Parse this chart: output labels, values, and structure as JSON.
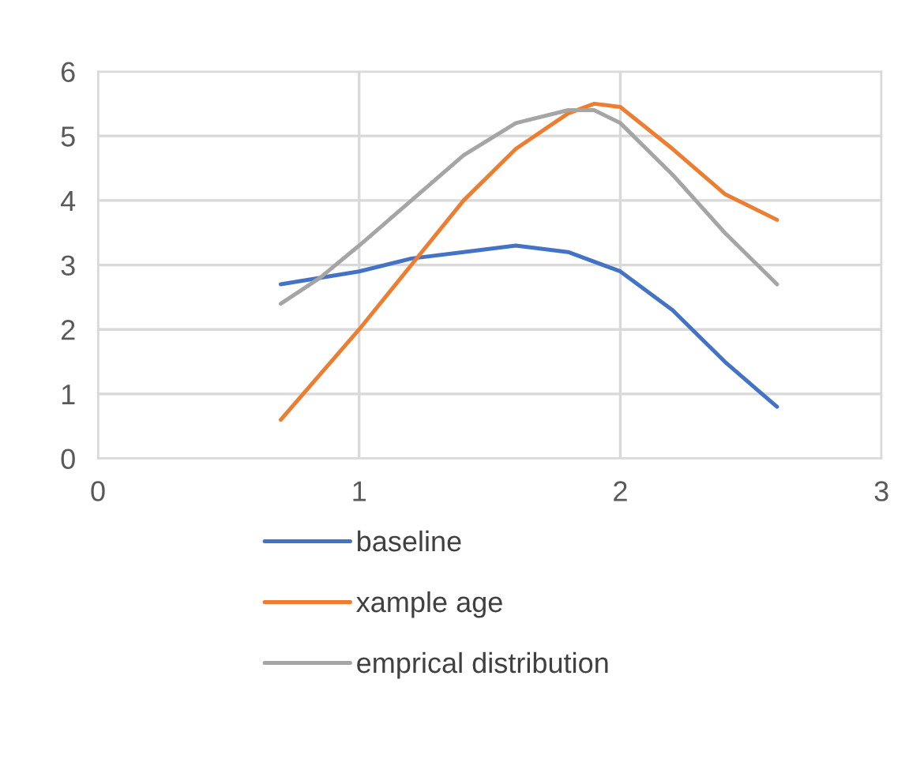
{
  "chart_data": {
    "type": "line",
    "xlim": [
      0,
      3
    ],
    "ylim": [
      0,
      6
    ],
    "xticks": [
      0,
      1,
      2,
      3
    ],
    "yticks": [
      0,
      1,
      2,
      3,
      4,
      5,
      6
    ],
    "grid": true,
    "legend": "bottom",
    "marker": "none",
    "line_style": "solid",
    "series": [
      {
        "name": "baseline",
        "color": "#4472c4",
        "x": [
          0.7,
          1.0,
          1.2,
          1.4,
          1.6,
          1.8,
          2.0,
          2.2,
          2.4,
          2.6
        ],
        "values": [
          2.7,
          2.9,
          3.1,
          3.2,
          3.3,
          3.2,
          2.9,
          2.3,
          1.5,
          0.8
        ]
      },
      {
        "name": "xample age",
        "color": "#ed7d31",
        "x": [
          0.7,
          0.85,
          1.0,
          1.2,
          1.4,
          1.6,
          1.8,
          1.9,
          2.0,
          2.2,
          2.4,
          2.6
        ],
        "values": [
          0.6,
          1.3,
          2.0,
          3.0,
          4.0,
          4.8,
          5.35,
          5.5,
          5.45,
          4.8,
          4.1,
          3.7
        ]
      },
      {
        "name": "emprical distribution",
        "color": "#a5a5a5",
        "x": [
          0.7,
          0.85,
          1.0,
          1.2,
          1.4,
          1.6,
          1.8,
          1.9,
          2.0,
          2.2,
          2.4,
          2.6
        ],
        "values": [
          2.4,
          2.8,
          3.3,
          4.0,
          4.7,
          5.2,
          5.4,
          5.4,
          5.2,
          4.4,
          3.5,
          2.7
        ]
      }
    ]
  }
}
